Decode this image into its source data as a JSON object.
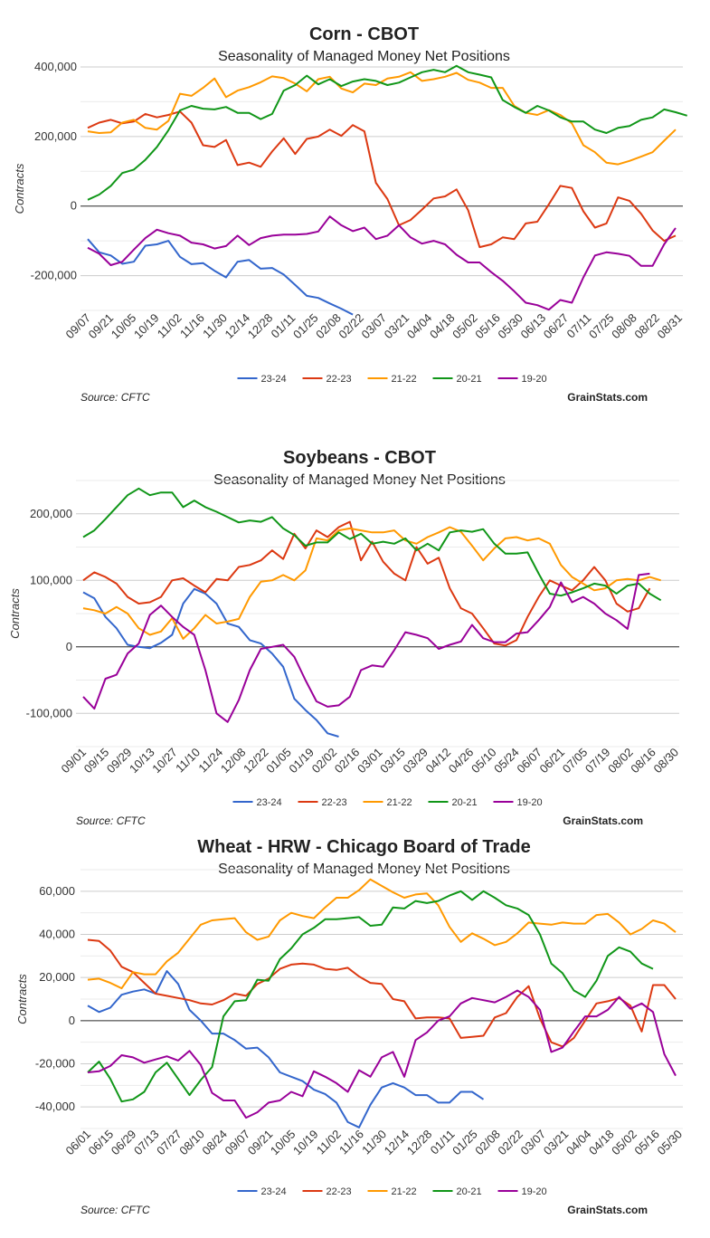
{
  "colors": {
    "23-24": "#3366cc",
    "22-23": "#dc3912",
    "21-22": "#ff9900",
    "20-21": "#109618",
    "19-20": "#990099"
  },
  "chart_data": [
    {
      "type": "line",
      "title": "Corn - CBOT",
      "subtitle": "Seasonality of Managed Money Net Positions",
      "ylabel": "Contracts",
      "source": "Source: CFTC",
      "credit": "GrainStats.com",
      "ylim": [
        -300000,
        400000
      ],
      "yticks": [
        {
          "v": 400000,
          "label": "400,000"
        },
        {
          "v": 200000,
          "label": "200,000"
        },
        {
          "v": 0,
          "label": "0"
        },
        {
          "v": -200000,
          "label": "-200,000"
        }
      ],
      "xticks": [
        "09/07",
        "09/21",
        "10/05",
        "10/19",
        "11/02",
        "11/16",
        "11/30",
        "12/14",
        "12/28",
        "01/11",
        "01/25",
        "02/08",
        "02/22",
        "03/07",
        "03/21",
        "04/04",
        "04/18",
        "05/02",
        "05/16",
        "05/30",
        "06/13",
        "06/27",
        "07/11",
        "07/25",
        "08/08",
        "08/22",
        "08/31"
      ],
      "n_points": 52,
      "legend": "bottom",
      "series": [
        {
          "name": "23-24",
          "values": [
            -95000,
            -133000,
            -142000,
            -166000,
            -160000,
            -114000,
            -110000,
            -100000,
            -146000,
            -167000,
            -164000,
            -186000,
            -205000,
            -160000,
            -155000,
            -180000,
            -178000,
            -197000,
            -227000,
            -258000,
            -264000,
            -280000,
            -295000,
            -312000
          ]
        },
        {
          "name": "22-23",
          "values": [
            225000,
            240000,
            248000,
            238000,
            243000,
            265000,
            255000,
            262000,
            272000,
            240000,
            175000,
            170000,
            190000,
            118000,
            125000,
            113000,
            157000,
            195000,
            150000,
            193000,
            200000,
            220000,
            202000,
            233000,
            215000,
            67000,
            20000,
            -55000,
            -40000,
            -10000,
            22000,
            28000,
            48000,
            -12000,
            -118000,
            -110000,
            -90000,
            -95000,
            -50000,
            -45000,
            5000,
            58000,
            52000,
            -15000,
            -62000,
            -50000,
            25000,
            15000,
            -22000,
            -70000,
            -100000,
            -85000
          ]
        },
        {
          "name": "21-22",
          "values": [
            215000,
            210000,
            212000,
            240000,
            248000,
            225000,
            220000,
            245000,
            323000,
            317000,
            340000,
            367000,
            313000,
            332000,
            342000,
            356000,
            373000,
            368000,
            352000,
            330000,
            365000,
            372000,
            338000,
            327000,
            352000,
            348000,
            367000,
            372000,
            385000,
            360000,
            365000,
            372000,
            383000,
            363000,
            355000,
            340000,
            340000,
            288000,
            268000,
            262000,
            276000,
            262000,
            238000,
            175000,
            155000,
            125000,
            120000,
            130000,
            142000,
            155000,
            188000,
            220000
          ]
        },
        {
          "name": "20-21",
          "values": [
            18000,
            33000,
            58000,
            95000,
            105000,
            133000,
            170000,
            218000,
            275000,
            288000,
            280000,
            278000,
            285000,
            268000,
            268000,
            250000,
            265000,
            332000,
            348000,
            375000,
            350000,
            365000,
            345000,
            358000,
            365000,
            360000,
            348000,
            355000,
            370000,
            385000,
            392000,
            385000,
            403000,
            385000,
            378000,
            370000,
            305000,
            285000,
            268000,
            288000,
            275000,
            255000,
            243000,
            243000,
            220000,
            210000,
            225000,
            230000,
            248000,
            255000,
            278000,
            270000,
            260000
          ]
        },
        {
          "name": "19-20",
          "values": [
            -120000,
            -137000,
            -170000,
            -160000,
            -125000,
            -92000,
            -68000,
            -78000,
            -85000,
            -105000,
            -110000,
            -122000,
            -115000,
            -85000,
            -112000,
            -92000,
            -85000,
            -82000,
            -82000,
            -80000,
            -73000,
            -30000,
            -55000,
            -72000,
            -62000,
            -95000,
            -85000,
            -55000,
            -90000,
            -108000,
            -100000,
            -110000,
            -140000,
            -162000,
            -162000,
            -190000,
            -215000,
            -245000,
            -278000,
            -285000,
            -298000,
            -270000,
            -278000,
            -205000,
            -142000,
            -133000,
            -137000,
            -143000,
            -172000,
            -172000,
            -110000,
            -63000
          ]
        }
      ]
    },
    {
      "type": "line",
      "title": "Soybeans - CBOT",
      "subtitle": "Seasonality of Managed Money Net Positions",
      "ylabel": "Contracts",
      "source": "Source: CFTC",
      "credit": "GrainStats.com",
      "ylim": [
        -150000,
        250000
      ],
      "yticks": [
        {
          "v": 200000,
          "label": "200,000"
        },
        {
          "v": 100000,
          "label": "100,000"
        },
        {
          "v": 0,
          "label": "0"
        },
        {
          "v": -100000,
          "label": "-100,000"
        }
      ],
      "xticks": [
        "09/01",
        "09/15",
        "09/29",
        "10/13",
        "10/27",
        "11/10",
        "11/24",
        "12/08",
        "12/22",
        "01/05",
        "01/19",
        "02/02",
        "02/16",
        "03/01",
        "03/15",
        "03/29",
        "04/12",
        "04/26",
        "05/10",
        "05/24",
        "06/07",
        "06/21",
        "07/05",
        "07/19",
        "08/02",
        "08/16",
        "08/30"
      ],
      "n_points": 54,
      "legend": "bottom",
      "series": [
        {
          "name": "23-24",
          "values": [
            82000,
            73000,
            45000,
            28000,
            3000,
            0,
            -2000,
            6000,
            18000,
            65000,
            87000,
            80000,
            65000,
            35000,
            30000,
            10000,
            5000,
            -10000,
            -30000,
            -78000,
            -95000,
            -110000,
            -130000,
            -135000
          ]
        },
        {
          "name": "22-23",
          "values": [
            100000,
            112000,
            105000,
            95000,
            75000,
            65000,
            67000,
            75000,
            100000,
            103000,
            92000,
            82000,
            102000,
            100000,
            120000,
            123000,
            130000,
            145000,
            132000,
            170000,
            148000,
            175000,
            165000,
            180000,
            188000,
            130000,
            158000,
            128000,
            110000,
            100000,
            150000,
            125000,
            134000,
            88000,
            58000,
            50000,
            28000,
            5000,
            2000,
            10000,
            45000,
            75000,
            100000,
            92000,
            85000,
            100000,
            120000,
            100000,
            65000,
            53000,
            58000,
            88000
          ]
        },
        {
          "name": "21-22",
          "values": [
            58000,
            55000,
            50000,
            60000,
            50000,
            28000,
            18000,
            23000,
            43000,
            12000,
            28000,
            48000,
            35000,
            38000,
            42000,
            75000,
            98000,
            100000,
            108000,
            100000,
            115000,
            163000,
            160000,
            175000,
            178000,
            175000,
            172000,
            172000,
            175000,
            160000,
            155000,
            165000,
            172000,
            180000,
            173000,
            152000,
            130000,
            148000,
            163000,
            165000,
            160000,
            163000,
            155000,
            123000,
            105000,
            95000,
            85000,
            88000,
            100000,
            102000,
            100000,
            105000,
            100000
          ]
        },
        {
          "name": "20-21",
          "values": [
            165000,
            175000,
            192000,
            210000,
            228000,
            238000,
            228000,
            232000,
            232000,
            210000,
            220000,
            210000,
            203000,
            195000,
            187000,
            190000,
            188000,
            195000,
            178000,
            168000,
            152000,
            157000,
            157000,
            172000,
            162000,
            170000,
            155000,
            158000,
            155000,
            163000,
            145000,
            155000,
            145000,
            172000,
            175000,
            173000,
            177000,
            155000,
            140000,
            140000,
            142000,
            110000,
            80000,
            77000,
            82000,
            88000,
            95000,
            92000,
            80000,
            92000,
            95000,
            80000,
            70000
          ]
        },
        {
          "name": "19-20",
          "values": [
            -75000,
            -93000,
            -48000,
            -42000,
            -10000,
            5000,
            48000,
            62000,
            45000,
            30000,
            18000,
            -35000,
            -100000,
            -113000,
            -80000,
            -35000,
            -3000,
            0,
            3000,
            -15000,
            -50000,
            -82000,
            -90000,
            -88000,
            -75000,
            -35000,
            -28000,
            -30000,
            -5000,
            22000,
            18000,
            13000,
            -3000,
            3000,
            8000,
            33000,
            13000,
            7000,
            7000,
            20000,
            22000,
            40000,
            60000,
            97000,
            67000,
            75000,
            65000,
            50000,
            40000,
            27000,
            108000,
            110000
          ]
        }
      ]
    },
    {
      "type": "line",
      "title": "Wheat - HRW - Chicago Board of Trade",
      "subtitle": "Seasonality of Managed Money Net Positions",
      "ylabel": "Contracts",
      "source": "Source: CFTC",
      "credit": "GrainStats.com",
      "ylim": [
        -50000,
        70000
      ],
      "yticks": [
        {
          "v": 60000,
          "label": "60,000"
        },
        {
          "v": 40000,
          "label": "40,000"
        },
        {
          "v": 20000,
          "label": "20,000"
        },
        {
          "v": 0,
          "label": "0"
        },
        {
          "v": -20000,
          "label": "-20,000"
        },
        {
          "v": -40000,
          "label": "-40,000"
        }
      ],
      "xticks": [
        "06/01",
        "06/15",
        "06/29",
        "07/13",
        "07/27",
        "08/10",
        "08/24",
        "09/07",
        "09/21",
        "10/05",
        "10/19",
        "11/02",
        "11/16",
        "11/30",
        "12/14",
        "12/28",
        "01/11",
        "01/25",
        "02/08",
        "02/22",
        "03/07",
        "03/21",
        "04/04",
        "04/18",
        "05/02",
        "05/16",
        "05/30"
      ],
      "n_points": 53,
      "legend": "bottom",
      "series": [
        {
          "name": "23-24",
          "values": [
            7000,
            4000,
            6000,
            12000,
            13500,
            14500,
            12500,
            23000,
            17000,
            5000,
            0,
            -6000,
            -6000,
            -9000,
            -13000,
            -12500,
            -17000,
            -24000,
            -26000,
            -28000,
            -32000,
            -34000,
            -38000,
            -47000,
            -49500,
            -39000,
            -31000,
            -29000,
            -31000,
            -34500,
            -34500,
            -38000,
            -38000,
            -33000,
            -33000,
            -36500
          ]
        },
        {
          "name": "22-23",
          "values": [
            37500,
            37000,
            32500,
            25000,
            22500,
            17500,
            12500,
            11500,
            10500,
            9500,
            8000,
            7500,
            9500,
            12500,
            11500,
            17000,
            19500,
            24000,
            26000,
            26500,
            26000,
            24000,
            23500,
            24500,
            20500,
            17500,
            17000,
            10000,
            9000,
            1000,
            1500,
            1500,
            1000,
            -8000,
            -7500,
            -7000,
            1500,
            3500,
            11000,
            16000,
            1000,
            -10000,
            -12000,
            -8000,
            0,
            8000,
            9000,
            10500,
            7000,
            -5000,
            16500,
            16500,
            10000
          ]
        },
        {
          "name": "21-22",
          "values": [
            19000,
            19500,
            17500,
            15000,
            22500,
            21500,
            21500,
            27500,
            31500,
            38000,
            44500,
            46500,
            47000,
            47500,
            41000,
            37500,
            39000,
            46500,
            50000,
            48500,
            47500,
            52500,
            57000,
            57000,
            60500,
            65500,
            62500,
            59500,
            57000,
            58500,
            59000,
            53500,
            43500,
            36500,
            40500,
            38000,
            35000,
            36500,
            40500,
            45500,
            45000,
            44500,
            45500,
            45000,
            45000,
            49000,
            49500,
            45500,
            40000,
            42500,
            46500,
            45000,
            41000
          ]
        },
        {
          "name": "20-21",
          "values": [
            -24000,
            -19000,
            -27000,
            -37500,
            -36500,
            -33000,
            -24000,
            -19500,
            -27000,
            -34500,
            -27500,
            -21500,
            2000,
            9000,
            9500,
            19000,
            18500,
            28500,
            33500,
            40000,
            43000,
            47000,
            47000,
            47500,
            48000,
            44000,
            44500,
            52500,
            52000,
            55500,
            54500,
            55500,
            58000,
            60000,
            56000,
            60000,
            57000,
            53500,
            52000,
            49000,
            40000,
            26500,
            22000,
            14000,
            11000,
            18500,
            30000,
            34000,
            32000,
            26500,
            24000
          ]
        },
        {
          "name": "19-20",
          "values": [
            -24000,
            -23500,
            -21000,
            -16000,
            -17000,
            -19500,
            -18000,
            -16500,
            -18500,
            -14000,
            -20500,
            -33500,
            -37000,
            -37000,
            -45000,
            -42500,
            -38000,
            -37000,
            -33000,
            -35000,
            -23500,
            -26000,
            -29000,
            -33000,
            -23000,
            -26000,
            -17000,
            -14500,
            -26000,
            -9000,
            -5500,
            0,
            2000,
            8000,
            10500,
            9500,
            8500,
            11000,
            14000,
            11000,
            5000,
            -14500,
            -12500,
            -5000,
            2000,
            2000,
            5000,
            11000,
            5500,
            8000,
            4000,
            -15500,
            -25500
          ]
        }
      ]
    }
  ]
}
